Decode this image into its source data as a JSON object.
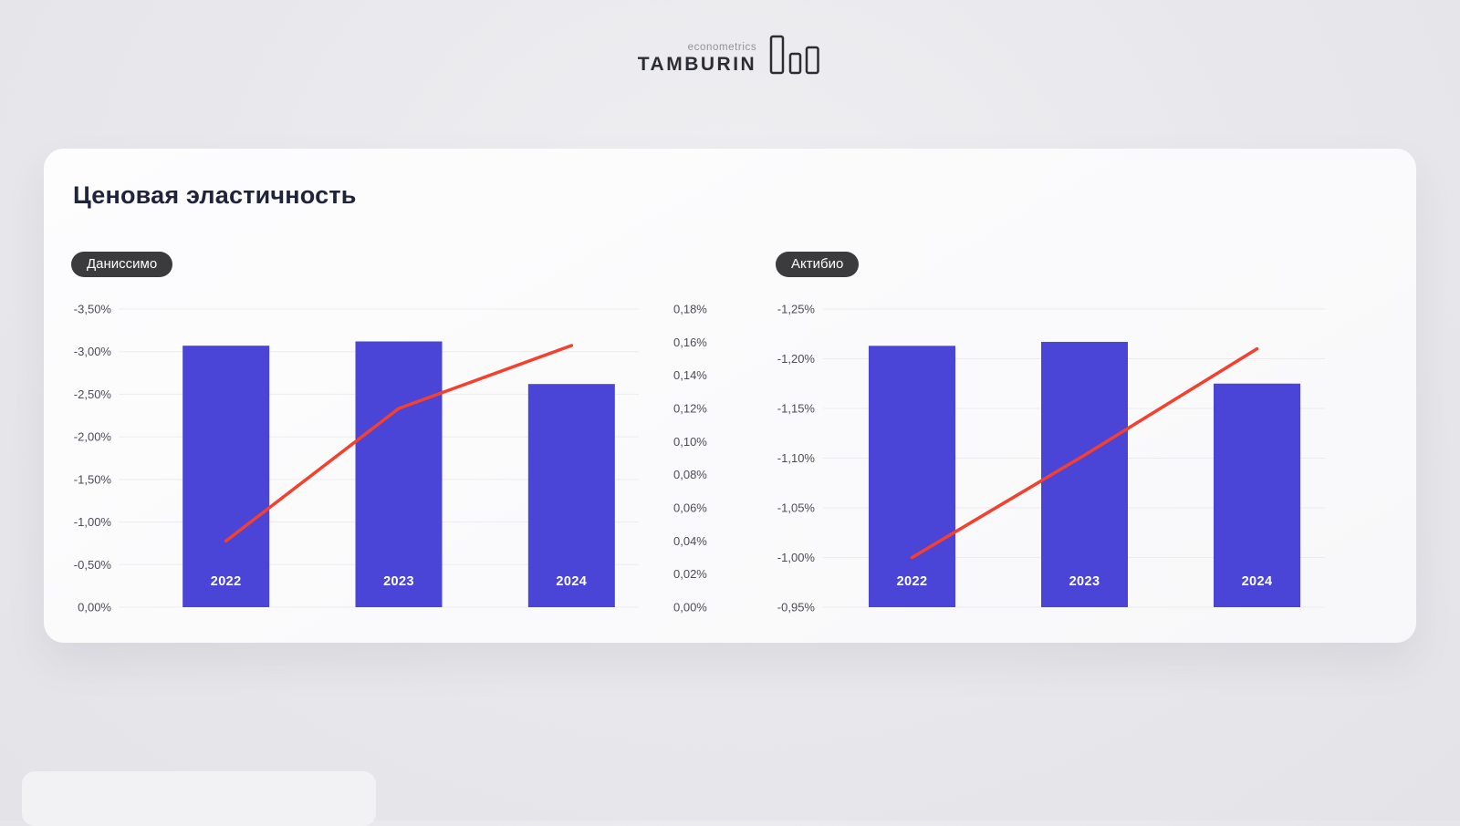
{
  "logo": {
    "eyebrow": "econometrics",
    "brand": "TAMBURIN"
  },
  "page": {
    "title": "Ценовая эластичность"
  },
  "colors": {
    "bar": "#4a45d7",
    "line": "#f4402e",
    "grid": "#ececf0",
    "badge_bg": "#3b3b3e",
    "title_text": "#20243a"
  },
  "chart_data": [
    {
      "type": "bar",
      "badge": "Даниссимо",
      "categories": [
        "2022",
        "2023",
        "2024"
      ],
      "bar_values": [
        -3.07,
        -3.12,
        -2.62
      ],
      "line_values": [
        0.04,
        0.12,
        0.158
      ],
      "line_axis": "right",
      "left_axis": {
        "top": -3.5,
        "bottom": 0,
        "ticks": [
          {
            "value": -3.5,
            "label": "-3,50%"
          },
          {
            "value": -3.0,
            "label": "-3,00%"
          },
          {
            "value": -2.5,
            "label": "-2,50%"
          },
          {
            "value": -2.0,
            "label": "-2,00%"
          },
          {
            "value": -1.5,
            "label": "-1,50%"
          },
          {
            "value": -1.0,
            "label": "-1,00%"
          },
          {
            "value": -0.5,
            "label": "-0,50%"
          },
          {
            "value": 0,
            "label": "0,00%"
          }
        ]
      },
      "right_axis": {
        "top": 0.18,
        "bottom": 0,
        "ticks": [
          {
            "value": 0.18,
            "label": "0,18%"
          },
          {
            "value": 0.16,
            "label": "0,16%"
          },
          {
            "value": 0.14,
            "label": "0,14%"
          },
          {
            "value": 0.12,
            "label": "0,12%"
          },
          {
            "value": 0.1,
            "label": "0,10%"
          },
          {
            "value": 0.08,
            "label": "0,08%"
          },
          {
            "value": 0.06,
            "label": "0,06%"
          },
          {
            "value": 0.04,
            "label": "0,04%"
          },
          {
            "value": 0.02,
            "label": "0,02%"
          },
          {
            "value": 0,
            "label": "0,00%"
          }
        ]
      }
    },
    {
      "type": "bar",
      "badge": "Актибио",
      "categories": [
        "2022",
        "2023",
        "2024"
      ],
      "bar_values": [
        -1.213,
        -1.217,
        -1.175
      ],
      "line_values": [
        -1.0,
        -1.103,
        -1.21
      ],
      "line_axis": "left",
      "left_axis": {
        "top": -1.25,
        "bottom": -0.95,
        "ticks": [
          {
            "value": -1.25,
            "label": "-1,25%"
          },
          {
            "value": -1.2,
            "label": "-1,20%"
          },
          {
            "value": -1.15,
            "label": "-1,15%"
          },
          {
            "value": -1.1,
            "label": "-1,10%"
          },
          {
            "value": -1.05,
            "label": "-1,05%"
          },
          {
            "value": -1.0,
            "label": "-1,00%"
          },
          {
            "value": -0.95,
            "label": "-0,95%"
          }
        ]
      }
    }
  ]
}
